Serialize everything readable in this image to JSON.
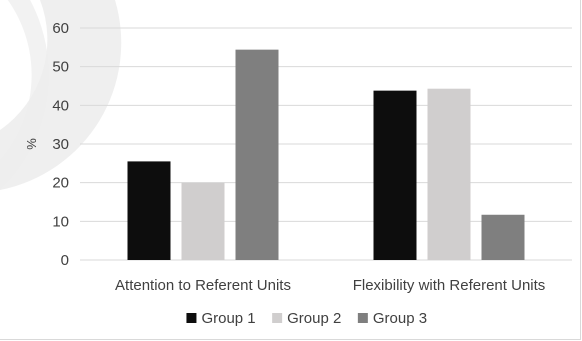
{
  "chart_data": {
    "type": "bar",
    "title": "",
    "xlabel": "",
    "ylabel": "%",
    "ylim": [
      0,
      60
    ],
    "yticks": [
      0,
      10,
      20,
      30,
      40,
      50,
      60
    ],
    "grid": true,
    "legend_position": "bottom",
    "categories": [
      "Attention to Referent Units",
      "Flexibility with Referent Units"
    ],
    "series": [
      {
        "name": "Group 1",
        "color": "#0d0d0d",
        "values": [
          25.5,
          43.8
        ]
      },
      {
        "name": "Group 2",
        "color": "#d0cece",
        "values": [
          20.0,
          44.3
        ]
      },
      {
        "name": "Group 3",
        "color": "#7f7f7f",
        "values": [
          54.4,
          11.7
        ]
      }
    ]
  }
}
